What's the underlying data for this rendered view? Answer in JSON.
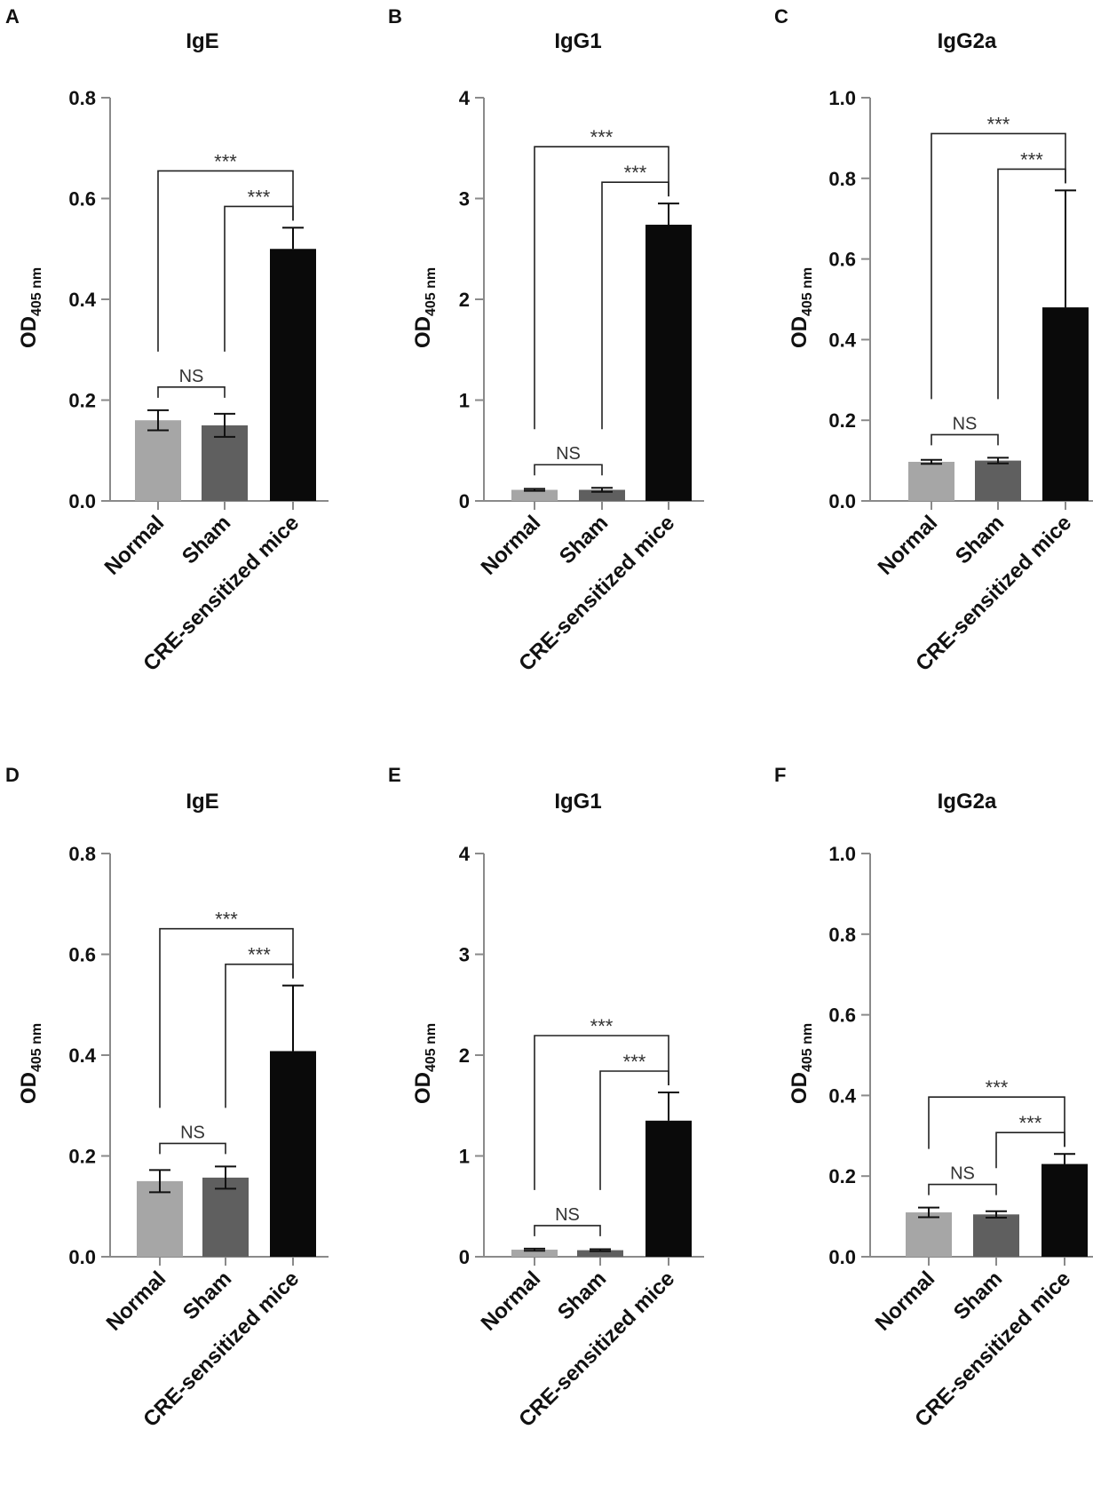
{
  "chart_data": [
    {
      "panel": "A",
      "type": "bar",
      "title": "IgE",
      "ylabel_main": "OD",
      "ylabel_sub": "405 nm",
      "categories": [
        "Normal",
        "Sham",
        "CRE-sensitized mice"
      ],
      "values": [
        0.16,
        0.15,
        0.5
      ],
      "errors": [
        0.02,
        0.023,
        0.042
      ],
      "ylim": [
        0,
        0.8
      ],
      "yticks": [
        "0.0",
        "0.2",
        "0.4",
        "0.6",
        "0.8"
      ],
      "comparisons": [
        {
          "from": "Normal",
          "to": "Sham",
          "label": "NS"
        },
        {
          "from": "Normal",
          "to": "CRE-sensitized mice",
          "label": "***"
        },
        {
          "from": "Sham",
          "to": "CRE-sensitized mice",
          "label": "***"
        }
      ],
      "bar_colors": [
        "#a6a6a6",
        "#5f5f5f",
        "#0a0a0a"
      ]
    },
    {
      "panel": "B",
      "type": "bar",
      "title": "IgG1",
      "ylabel_main": "OD",
      "ylabel_sub": "405 nm",
      "categories": [
        "Normal",
        "Sham",
        "CRE-sensitized mice"
      ],
      "values": [
        0.11,
        0.11,
        2.74
      ],
      "errors": [
        0.01,
        0.02,
        0.21
      ],
      "ylim": [
        0,
        4
      ],
      "yticks": [
        "0",
        "1",
        "2",
        "3",
        "4"
      ],
      "comparisons": [
        {
          "from": "Normal",
          "to": "Sham",
          "label": "NS"
        },
        {
          "from": "Normal",
          "to": "CRE-sensitized mice",
          "label": "***"
        },
        {
          "from": "Sham",
          "to": "CRE-sensitized mice",
          "label": "***"
        }
      ],
      "bar_colors": [
        "#a6a6a6",
        "#5f5f5f",
        "#0a0a0a"
      ]
    },
    {
      "panel": "C",
      "type": "bar",
      "title": "IgG2a",
      "ylabel_main": "OD",
      "ylabel_sub": "405 nm",
      "categories": [
        "Normal",
        "Sham",
        "CRE-sensitized mice"
      ],
      "values": [
        0.097,
        0.1,
        0.48
      ],
      "errors": [
        0.005,
        0.007,
        0.29
      ],
      "ylim": [
        0,
        1.0
      ],
      "yticks": [
        "0.0",
        "0.2",
        "0.4",
        "0.6",
        "0.8",
        "1.0"
      ],
      "comparisons": [
        {
          "from": "Normal",
          "to": "Sham",
          "label": "NS"
        },
        {
          "from": "Normal",
          "to": "CRE-sensitized mice",
          "label": "***"
        },
        {
          "from": "Sham",
          "to": "CRE-sensitized mice",
          "label": "***"
        }
      ],
      "bar_colors": [
        "#a6a6a6",
        "#5f5f5f",
        "#0a0a0a"
      ]
    },
    {
      "panel": "D",
      "type": "bar",
      "title": "IgE",
      "ylabel_main": "OD",
      "ylabel_sub": "405 nm",
      "categories": [
        "Normal",
        "Sham",
        "CRE-sensitized mice"
      ],
      "values": [
        0.15,
        0.157,
        0.408
      ],
      "errors": [
        0.022,
        0.022,
        0.13
      ],
      "ylim": [
        0,
        0.8
      ],
      "yticks": [
        "0.0",
        "0.2",
        "0.4",
        "0.6",
        "0.8"
      ],
      "comparisons": [
        {
          "from": "Normal",
          "to": "Sham",
          "label": "NS"
        },
        {
          "from": "Normal",
          "to": "CRE-sensitized mice",
          "label": "***"
        },
        {
          "from": "Sham",
          "to": "CRE-sensitized mice",
          "label": "***"
        }
      ],
      "bar_colors": [
        "#a6a6a6",
        "#5f5f5f",
        "#0a0a0a"
      ]
    },
    {
      "panel": "E",
      "type": "bar",
      "title": "IgG1",
      "ylabel_main": "OD",
      "ylabel_sub": "405 nm",
      "categories": [
        "Normal",
        "Sham",
        "CRE-sensitized mice"
      ],
      "values": [
        0.07,
        0.065,
        1.35
      ],
      "errors": [
        0.01,
        0.01,
        0.28
      ],
      "ylim": [
        0,
        4
      ],
      "yticks": [
        "0",
        "1",
        "2",
        "3",
        "4"
      ],
      "comparisons": [
        {
          "from": "Normal",
          "to": "Sham",
          "label": "NS"
        },
        {
          "from": "Normal",
          "to": "CRE-sensitized mice",
          "label": "***"
        },
        {
          "from": "Sham",
          "to": "CRE-sensitized mice",
          "label": "***"
        }
      ],
      "bar_colors": [
        "#a6a6a6",
        "#5f5f5f",
        "#0a0a0a"
      ]
    },
    {
      "panel": "F",
      "type": "bar",
      "title": "IgG2a",
      "ylabel_main": "OD",
      "ylabel_sub": "405 nm",
      "categories": [
        "Normal",
        "Sham",
        "CRE-sensitized mice"
      ],
      "values": [
        0.11,
        0.105,
        0.23
      ],
      "errors": [
        0.012,
        0.008,
        0.025
      ],
      "ylim": [
        0,
        1.0
      ],
      "yticks": [
        "0.0",
        "0.2",
        "0.4",
        "0.6",
        "0.8",
        "1.0"
      ],
      "comparisons": [
        {
          "from": "Normal",
          "to": "Sham",
          "label": "NS"
        },
        {
          "from": "Normal",
          "to": "CRE-sensitized mice",
          "label": "***"
        },
        {
          "from": "Sham",
          "to": "CRE-sensitized mice",
          "label": "***"
        }
      ],
      "bar_colors": [
        "#a6a6a6",
        "#5f5f5f",
        "#0a0a0a"
      ]
    }
  ]
}
